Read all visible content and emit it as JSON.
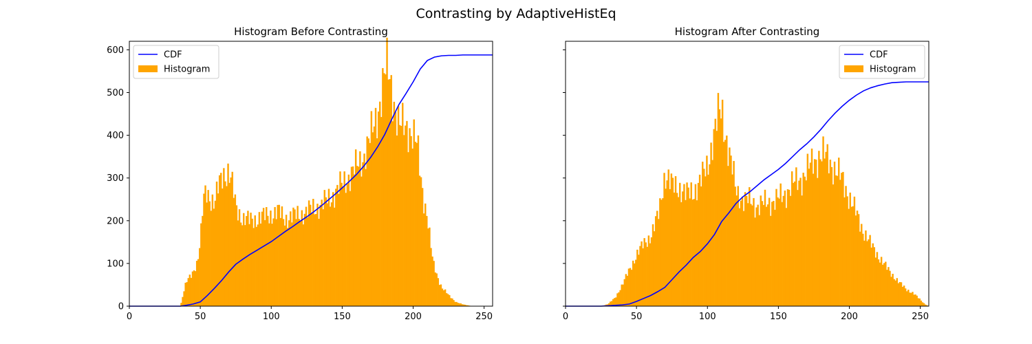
{
  "figure": {
    "suptitle": "Contrasting by AdaptiveHistEq",
    "colors": {
      "histogram": "#FFA500",
      "cdf": "#0000FF"
    }
  },
  "chart_data": [
    {
      "type": "bar",
      "title": "Histogram Before Contrasting",
      "xlabel": "",
      "ylabel": "",
      "xlim": [
        0,
        256
      ],
      "ylim": [
        0,
        620
      ],
      "xticks": [
        0,
        50,
        100,
        150,
        200,
        250
      ],
      "yticks": [
        0,
        100,
        200,
        300,
        400,
        500,
        600
      ],
      "show_yticklabels": true,
      "grid": false,
      "legend": {
        "loc": "upper left",
        "entries": [
          "CDF",
          "Histogram"
        ]
      },
      "series": [
        {
          "name": "Histogram",
          "kind": "bar",
          "knots_x": [
            36,
            38,
            40,
            44,
            48,
            50,
            52,
            54,
            57,
            60,
            63,
            66,
            70,
            73,
            75,
            78,
            80,
            85,
            90,
            95,
            100,
            105,
            110,
            115,
            120,
            125,
            130,
            135,
            140,
            145,
            150,
            155,
            160,
            165,
            170,
            175,
            178,
            180,
            182,
            184,
            186,
            188,
            190,
            193,
            196,
            200,
            203,
            205,
            207,
            210,
            212,
            214,
            217,
            220,
            225,
            230,
            235,
            240,
            245,
            250,
            255
          ],
          "knots_y": [
            0,
            30,
            55,
            75,
            105,
            150,
            240,
            270,
            255,
            240,
            280,
            310,
            315,
            275,
            230,
            215,
            205,
            200,
            205,
            210,
            215,
            220,
            205,
            210,
            215,
            220,
            230,
            235,
            250,
            265,
            285,
            305,
            325,
            350,
            395,
            455,
            505,
            545,
            555,
            525,
            490,
            450,
            420,
            420,
            420,
            400,
            370,
            310,
            260,
            210,
            150,
            100,
            70,
            45,
            25,
            10,
            4,
            1,
            0,
            0,
            0
          ]
        },
        {
          "name": "CDF",
          "kind": "line",
          "x": [
            0,
            36,
            40,
            45,
            50,
            55,
            60,
            65,
            70,
            75,
            80,
            85,
            90,
            95,
            100,
            105,
            110,
            115,
            120,
            125,
            130,
            135,
            140,
            145,
            150,
            155,
            160,
            165,
            170,
            175,
            180,
            185,
            190,
            195,
            200,
            205,
            210,
            215,
            220,
            225,
            230,
            235,
            240,
            245,
            250,
            256
          ],
          "y": [
            0,
            0,
            2,
            5,
            10,
            25,
            42,
            60,
            80,
            98,
            110,
            121,
            131,
            141,
            151,
            163,
            175,
            186,
            198,
            209,
            221,
            234,
            248,
            262,
            277,
            292,
            308,
            327,
            348,
            373,
            402,
            438,
            472,
            498,
            525,
            555,
            575,
            583,
            586,
            587,
            587,
            588,
            588,
            588,
            588,
            588
          ]
        }
      ]
    },
    {
      "type": "bar",
      "title": "Histogram After Contrasting",
      "xlabel": "",
      "ylabel": "",
      "xlim": [
        0,
        256
      ],
      "ylim": [
        0,
        620
      ],
      "xticks": [
        0,
        50,
        100,
        150,
        200,
        250
      ],
      "yticks": [
        0,
        100,
        200,
        300,
        400,
        500,
        600
      ],
      "show_yticklabels": false,
      "grid": false,
      "legend": {
        "loc": "upper right",
        "entries": [
          "CDF",
          "Histogram"
        ]
      },
      "series": [
        {
          "name": "Histogram",
          "kind": "bar",
          "knots_x": [
            25,
            30,
            35,
            40,
            45,
            50,
            55,
            60,
            63,
            66,
            68,
            70,
            72,
            75,
            80,
            85,
            90,
            95,
            100,
            103,
            106,
            108,
            110,
            112,
            115,
            118,
            120,
            125,
            130,
            135,
            140,
            145,
            150,
            155,
            160,
            165,
            170,
            175,
            180,
            185,
            190,
            195,
            200,
            205,
            210,
            215,
            220,
            225,
            230,
            235,
            240,
            245,
            250,
            253,
            256
          ],
          "knots_y": [
            0,
            5,
            20,
            50,
            85,
            120,
            145,
            165,
            190,
            220,
            270,
            310,
            300,
            280,
            280,
            260,
            270,
            290,
            330,
            380,
            420,
            450,
            460,
            420,
            360,
            310,
            270,
            250,
            245,
            235,
            240,
            245,
            250,
            265,
            285,
            295,
            315,
            340,
            355,
            345,
            320,
            295,
            255,
            215,
            175,
            145,
            120,
            95,
            75,
            55,
            40,
            30,
            15,
            5,
            0
          ]
        },
        {
          "name": "CDF",
          "kind": "line",
          "x": [
            0,
            25,
            30,
            35,
            40,
            45,
            50,
            55,
            60,
            65,
            70,
            75,
            80,
            85,
            90,
            95,
            100,
            105,
            110,
            115,
            120,
            125,
            130,
            135,
            140,
            145,
            150,
            155,
            160,
            165,
            170,
            175,
            180,
            185,
            190,
            195,
            200,
            205,
            210,
            215,
            220,
            225,
            230,
            235,
            240,
            245,
            250,
            256
          ],
          "y": [
            0,
            0,
            1,
            2,
            3,
            5,
            11,
            18,
            25,
            34,
            44,
            62,
            80,
            96,
            114,
            128,
            146,
            168,
            198,
            218,
            240,
            256,
            268,
            282,
            296,
            308,
            320,
            334,
            350,
            366,
            380,
            396,
            414,
            434,
            452,
            468,
            482,
            494,
            504,
            511,
            516,
            520,
            523,
            524,
            525,
            525,
            525,
            525
          ]
        }
      ]
    }
  ]
}
